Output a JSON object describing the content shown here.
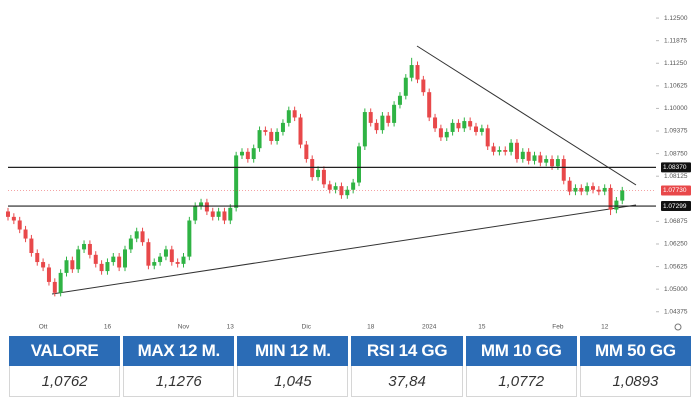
{
  "chart_data": {
    "type": "candlestick",
    "categories": [
      null,
      null,
      null,
      null,
      null,
      null,
      "Ott",
      null,
      null,
      null,
      null,
      null,
      null,
      null,
      null,
      null,
      null,
      "16",
      null,
      null,
      null,
      null,
      null,
      null,
      null,
      null,
      null,
      null,
      null,
      null,
      "Nov",
      null,
      null,
      null,
      null,
      null,
      null,
      null,
      "13",
      null,
      null,
      null,
      null,
      null,
      null,
      null,
      null,
      null,
      null,
      null,
      null,
      "Dic",
      null,
      null,
      null,
      null,
      null,
      null,
      null,
      null,
      null,
      null,
      "18",
      null,
      null,
      null,
      null,
      null,
      null,
      null,
      null,
      null,
      "2024",
      null,
      null,
      null,
      null,
      null,
      null,
      null,
      null,
      "15",
      null,
      null,
      null,
      null,
      null,
      null,
      null,
      null,
      null,
      null,
      null,
      null,
      "Feb",
      null,
      null,
      null,
      null,
      null,
      null,
      null,
      "12",
      null,
      null,
      null
    ],
    "open": [
      1.0715,
      1.07,
      1.069,
      1.0665,
      1.064,
      1.06,
      1.0575,
      1.056,
      1.052,
      1.049,
      1.0545,
      1.058,
      1.0555,
      1.061,
      1.0625,
      1.0595,
      1.057,
      1.055,
      1.0575,
      1.059,
      1.056,
      1.061,
      1.064,
      1.066,
      1.063,
      1.0565,
      1.0575,
      1.059,
      1.061,
      1.0575,
      1.057,
      1.059,
      1.069,
      1.073,
      1.074,
      1.0715,
      1.07,
      1.0715,
      1.069,
      1.0725,
      1.087,
      1.088,
      1.086,
      1.089,
      1.094,
      1.0935,
      1.091,
      1.0935,
      1.096,
      1.0995,
      1.0975,
      1.09,
      1.086,
      1.081,
      1.083,
      1.079,
      1.0775,
      1.0785,
      1.076,
      1.0775,
      1.0795,
      1.0895,
      1.099,
      1.096,
      1.094,
      1.098,
      1.096,
      1.101,
      1.1035,
      1.1085,
      1.112,
      1.108,
      1.1045,
      1.0975,
      1.0945,
      1.092,
      1.0935,
      1.096,
      1.0945,
      1.0965,
      1.095,
      1.0935,
      1.0945,
      1.0895,
      1.088,
      1.0885,
      1.088,
      1.0905,
      1.086,
      1.088,
      1.0855,
      1.087,
      1.085,
      1.086,
      1.084,
      1.086,
      1.08,
      1.077,
      1.078,
      1.077,
      1.0785,
      1.0775,
      1.077,
      1.078,
      1.072,
      1.0745
    ],
    "high": [
      1.0725,
      1.071,
      1.07,
      1.0675,
      1.065,
      1.061,
      1.0585,
      1.057,
      1.053,
      1.0555,
      1.059,
      1.059,
      1.062,
      1.0635,
      1.0635,
      1.0605,
      1.058,
      1.0585,
      1.06,
      1.06,
      1.062,
      1.065,
      1.067,
      1.067,
      1.064,
      1.0585,
      1.06,
      1.062,
      1.062,
      1.0585,
      1.06,
      1.07,
      1.074,
      1.075,
      1.075,
      1.0725,
      1.0725,
      1.0725,
      1.0735,
      1.088,
      1.089,
      1.089,
      1.09,
      1.095,
      1.095,
      1.0945,
      1.0945,
      1.097,
      1.1005,
      1.1005,
      1.0985,
      1.091,
      1.087,
      1.084,
      1.084,
      1.08,
      1.0795,
      1.0795,
      1.0785,
      1.0805,
      1.0905,
      1.1,
      1.1,
      1.097,
      1.099,
      1.099,
      1.102,
      1.1045,
      1.1095,
      1.114,
      1.113,
      1.109,
      1.1055,
      1.0985,
      1.0955,
      1.0945,
      1.097,
      1.097,
      1.0975,
      1.0975,
      1.096,
      1.0955,
      1.0955,
      1.0905,
      1.0895,
      1.0895,
      1.0915,
      1.0915,
      1.089,
      1.089,
      1.088,
      1.088,
      1.087,
      1.087,
      1.087,
      1.087,
      1.081,
      1.079,
      1.079,
      1.0795,
      1.0795,
      1.0785,
      1.079,
      1.079,
      1.0755,
      1.0783
    ],
    "low": [
      1.069,
      1.068,
      1.0655,
      1.063,
      1.059,
      1.0565,
      1.055,
      1.051,
      1.048,
      1.048,
      1.0535,
      1.0545,
      1.0545,
      1.06,
      1.0585,
      1.056,
      1.054,
      1.054,
      1.0565,
      1.055,
      1.055,
      1.06,
      1.063,
      1.062,
      1.0555,
      1.0555,
      1.0565,
      1.058,
      1.0565,
      1.056,
      1.056,
      1.058,
      1.068,
      1.072,
      1.0705,
      1.069,
      1.069,
      1.068,
      1.068,
      1.0715,
      1.086,
      1.085,
      1.085,
      1.088,
      1.0925,
      1.09,
      1.09,
      1.0925,
      1.095,
      1.0965,
      1.089,
      1.085,
      1.08,
      1.08,
      1.078,
      1.0765,
      1.0765,
      1.075,
      1.075,
      1.0765,
      1.0785,
      1.0885,
      1.095,
      1.093,
      1.093,
      1.095,
      1.095,
      1.1,
      1.1025,
      1.1075,
      1.107,
      1.1035,
      1.0965,
      1.0935,
      1.091,
      1.091,
      1.0925,
      1.0935,
      1.0935,
      1.094,
      1.0925,
      1.0925,
      1.0885,
      1.087,
      1.087,
      1.087,
      1.087,
      1.085,
      1.085,
      1.0845,
      1.0845,
      1.084,
      1.084,
      1.083,
      1.083,
      1.079,
      1.076,
      1.076,
      1.076,
      1.076,
      1.0765,
      1.076,
      1.076,
      1.0705,
      1.071,
      1.0735
    ],
    "close": [
      1.07,
      1.069,
      1.0665,
      1.064,
      1.06,
      1.0575,
      1.056,
      1.052,
      1.049,
      1.0545,
      1.058,
      1.0555,
      1.061,
      1.0625,
      1.0595,
      1.057,
      1.055,
      1.0575,
      1.059,
      1.056,
      1.061,
      1.064,
      1.066,
      1.063,
      1.0565,
      1.0575,
      1.059,
      1.061,
      1.0575,
      1.057,
      1.059,
      1.069,
      1.073,
      1.074,
      1.0715,
      1.07,
      1.0715,
      1.069,
      1.0725,
      1.087,
      1.088,
      1.086,
      1.089,
      1.094,
      1.0935,
      1.091,
      1.0935,
      1.096,
      1.0995,
      1.0975,
      1.09,
      1.086,
      1.081,
      1.083,
      1.079,
      1.0775,
      1.0785,
      1.076,
      1.0775,
      1.0795,
      1.0895,
      1.099,
      1.096,
      1.094,
      1.098,
      1.096,
      1.101,
      1.1035,
      1.1085,
      1.112,
      1.108,
      1.1045,
      1.0975,
      1.0945,
      1.092,
      1.0935,
      1.096,
      1.0945,
      1.0965,
      1.095,
      1.0935,
      1.0945,
      1.0895,
      1.088,
      1.0885,
      1.088,
      1.0905,
      1.086,
      1.088,
      1.0855,
      1.087,
      1.085,
      1.086,
      1.084,
      1.086,
      1.08,
      1.077,
      1.078,
      1.077,
      1.0785,
      1.0775,
      1.077,
      1.078,
      1.072,
      1.0745,
      1.0773
    ],
    "up_color": "#2fb344",
    "down_color": "#e8484a",
    "ylim": [
      1.0387,
      1.13
    ],
    "yticks": [
      {
        "value": 1.125,
        "label": "1.12500"
      },
      {
        "value": 1.11875,
        "label": "1.11875"
      },
      {
        "value": 1.1125,
        "label": "1.11250"
      },
      {
        "value": 1.10625,
        "label": "1.10625"
      },
      {
        "value": 1.1,
        "label": "1.10000"
      },
      {
        "value": 1.09375,
        "label": "1.09375"
      },
      {
        "value": 1.0875,
        "label": "1.08750"
      },
      {
        "value": 1.08125,
        "label": "1.08125"
      },
      {
        "value": 1.06875,
        "label": "1.06875"
      },
      {
        "value": 1.0625,
        "label": "1.06250"
      },
      {
        "value": 1.05625,
        "label": "1.05625"
      },
      {
        "value": 1.05,
        "label": "1.05000"
      },
      {
        "value": 1.04375,
        "label": "1.04375"
      }
    ],
    "levels": [
      {
        "value": 1.0837,
        "label": "1.08370"
      },
      {
        "value": 1.07299,
        "label": "1.07299"
      }
    ],
    "last_price": {
      "value": 1.0773,
      "label": "1.07730"
    }
  },
  "table": {
    "headers": [
      "VALORE",
      "MAX 12 M.",
      "MIN 12 M.",
      "RSI 14 GG",
      "MM 10 GG",
      "MM 50 GG"
    ],
    "rows": [
      [
        "1,0762",
        "1,1276",
        "1,045",
        "37,84",
        "1,0772",
        "1,0893"
      ]
    ]
  }
}
